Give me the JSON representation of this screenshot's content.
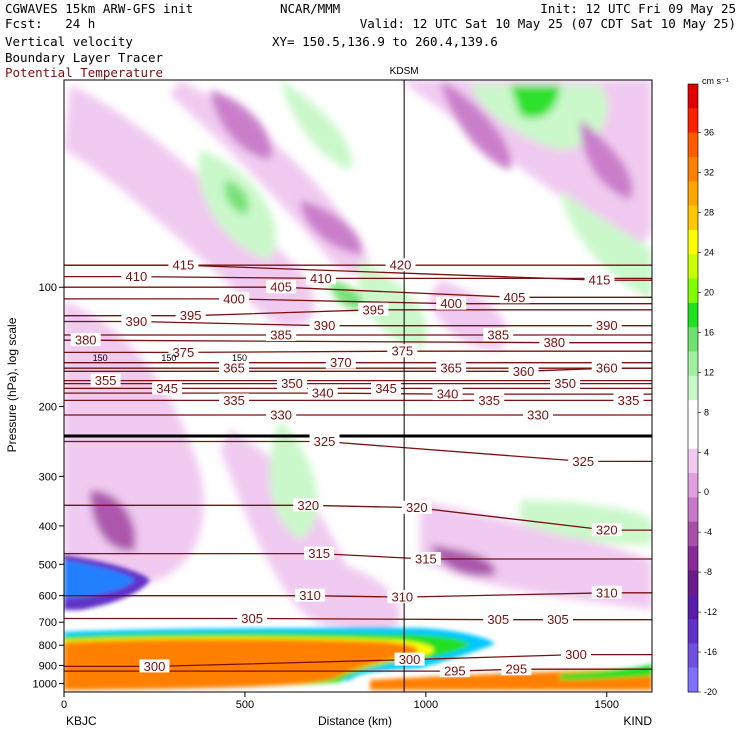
{
  "header": {
    "left_line1": "CGWAVES 15km ARW-GFS init",
    "left_line2": "Fcst:   24 h",
    "left_line3": "Vertical velocity",
    "left_line4": "Boundary Layer Tracer",
    "left_line5": "Potential Temperature",
    "center_line1": "NCAR/MMM",
    "right_line1": "Init: 12 UTC Fri 09 May 25",
    "right_line2": "Valid: 12 UTC Sat 10 May 25 (07 CDT Sat 10 May 25)",
    "right_line3": "XY= 150.5,136.9 to 260.4,139.6",
    "station_marker": "KDSM",
    "left_endpoint": "KBJC",
    "right_endpoint": "KIND",
    "colors": {
      "potential_temperature": "#7a1010"
    }
  },
  "chart_data": {
    "type": "heatmap",
    "xlabel": "Distance (km)",
    "ylabel": "Pressure (hPa), log scale",
    "xlim": [
      0,
      1625
    ],
    "ylim": [
      1050,
      30
    ],
    "x_ticks": [
      0,
      500,
      1000,
      1500
    ],
    "y_ticks": [
      100,
      200,
      300,
      400,
      500,
      600,
      700,
      800,
      900,
      1000
    ],
    "station_x_km": 940,
    "colorbar": {
      "unit": "cm s⁻¹",
      "tick_labels": [
        36,
        32,
        28,
        24,
        20,
        16,
        12,
        8,
        4,
        0,
        -4,
        -8,
        -12,
        -16,
        -20
      ],
      "colors": [
        "#e00000",
        "#ff2000",
        "#ff5a00",
        "#ff8000",
        "#ffa500",
        "#ffc800",
        "#ffff00",
        "#c8ff00",
        "#80ff00",
        "#20e020",
        "#70e070",
        "#a0f0a0",
        "#c8f8c8",
        "#ffffff",
        "#ffffff",
        "#f0c8f0",
        "#e0a0e0",
        "#c878c8",
        "#a850a8",
        "#8a2a9a",
        "#6a1a8a",
        "#5a1aaa",
        "#6030c8",
        "#7050e0",
        "#8070ff"
      ]
    },
    "theta_labels": [
      {
        "v": 420,
        "x": 930,
        "p": 88
      },
      {
        "v": 415,
        "x": 330,
        "p": 88
      },
      {
        "v": 415,
        "x": 1480,
        "p": 96
      },
      {
        "v": 410,
        "x": 200,
        "p": 94
      },
      {
        "v": 410,
        "x": 710,
        "p": 95
      },
      {
        "v": 405,
        "x": 600,
        "p": 100
      },
      {
        "v": 405,
        "x": 1245,
        "p": 106
      },
      {
        "v": 400,
        "x": 470,
        "p": 107
      },
      {
        "v": 400,
        "x": 1070,
        "p": 110
      },
      {
        "v": 395,
        "x": 350,
        "p": 118
      },
      {
        "v": 395,
        "x": 855,
        "p": 114
      },
      {
        "v": 390,
        "x": 200,
        "p": 122
      },
      {
        "v": 390,
        "x": 720,
        "p": 125
      },
      {
        "v": 390,
        "x": 1500,
        "p": 125
      },
      {
        "v": 385,
        "x": 600,
        "p": 132
      },
      {
        "v": 385,
        "x": 1200,
        "p": 132
      },
      {
        "v": 380,
        "x": 60,
        "p": 136
      },
      {
        "v": 380,
        "x": 1355,
        "p": 138
      },
      {
        "v": 375,
        "x": 330,
        "p": 146
      },
      {
        "v": 375,
        "x": 935,
        "p": 145
      },
      {
        "v": 370,
        "x": 765,
        "p": 155
      },
      {
        "v": 365,
        "x": 470,
        "p": 160
      },
      {
        "v": 365,
        "x": 1070,
        "p": 160
      },
      {
        "v": 360,
        "x": 1270,
        "p": 163
      },
      {
        "v": 360,
        "x": 1500,
        "p": 160
      },
      {
        "v": 355,
        "x": 115,
        "p": 172
      },
      {
        "v": 350,
        "x": 630,
        "p": 175
      },
      {
        "v": 350,
        "x": 1385,
        "p": 175
      },
      {
        "v": 345,
        "x": 285,
        "p": 180
      },
      {
        "v": 345,
        "x": 890,
        "p": 180
      },
      {
        "v": 340,
        "x": 715,
        "p": 185
      },
      {
        "v": 340,
        "x": 1060,
        "p": 186
      },
      {
        "v": 335,
        "x": 470,
        "p": 193
      },
      {
        "v": 335,
        "x": 1175,
        "p": 193
      },
      {
        "v": 335,
        "x": 1560,
        "p": 193
      },
      {
        "v": 330,
        "x": 600,
        "p": 210
      },
      {
        "v": 330,
        "x": 1310,
        "p": 210
      },
      {
        "v": 325,
        "x": 720,
        "p": 245
      },
      {
        "v": 325,
        "x": 1435,
        "p": 275
      },
      {
        "v": 320,
        "x": 675,
        "p": 355
      },
      {
        "v": 320,
        "x": 975,
        "p": 360
      },
      {
        "v": 320,
        "x": 1500,
        "p": 410
      },
      {
        "v": 315,
        "x": 705,
        "p": 470
      },
      {
        "v": 315,
        "x": 1000,
        "p": 485
      },
      {
        "v": 310,
        "x": 680,
        "p": 600
      },
      {
        "v": 310,
        "x": 935,
        "p": 605
      },
      {
        "v": 310,
        "x": 1500,
        "p": 590
      },
      {
        "v": 305,
        "x": 520,
        "p": 685
      },
      {
        "v": 305,
        "x": 1200,
        "p": 690
      },
      {
        "v": 305,
        "x": 1365,
        "p": 690
      },
      {
        "v": 300,
        "x": 250,
        "p": 905
      },
      {
        "v": 300,
        "x": 955,
        "p": 870
      },
      {
        "v": 300,
        "x": 1415,
        "p": 845
      },
      {
        "v": 295,
        "x": 1080,
        "p": 930
      },
      {
        "v": 295,
        "x": 1250,
        "p": 920
      }
    ],
    "tropopause_label": "150"
  }
}
